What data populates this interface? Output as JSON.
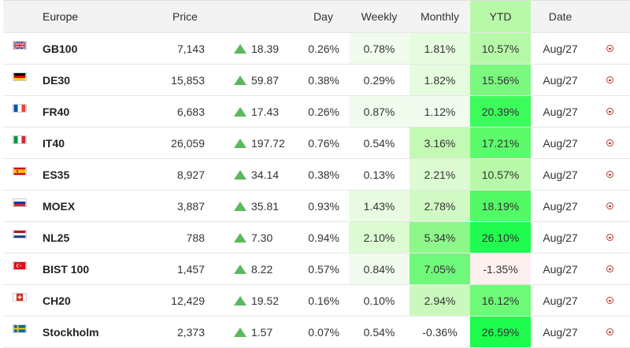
{
  "header": {
    "name": "Europe",
    "price": "Price",
    "day": "Day",
    "weekly": "Weekly",
    "monthly": "Monthly",
    "ytd": "YTD",
    "date": "Date"
  },
  "colors": {
    "up_arrow": "#5cb85c",
    "clock_icon": "#c0392b",
    "pale_green": "#eefbe9",
    "light_green": "#d6fbc9",
    "mid_green": "#a7f99a",
    "bright_green": "#3cfc5b",
    "pale_red": "#fdf0ee"
  },
  "rows": [
    {
      "flag": "uk-flag-icon",
      "name": "GB100",
      "price": "7,143",
      "change": "18.39",
      "day": "0.26%",
      "weekly": "0.78%",
      "monthly": "1.81%",
      "ytd": "10.57%",
      "date": "Aug/27",
      "bg": {
        "weekly": "#f2fcee",
        "monthly": "#e6fcde",
        "ytd": "#b7f9a8"
      }
    },
    {
      "flag": "germany-flag-icon",
      "name": "DE30",
      "price": "15,853",
      "change": "59.87",
      "day": "0.38%",
      "weekly": "0.29%",
      "monthly": "1.82%",
      "ytd": "15.56%",
      "date": "Aug/27",
      "bg": {
        "weekly": "#ffffff",
        "monthly": "#e6fcde",
        "ytd": "#7bf97f"
      }
    },
    {
      "flag": "france-flag-icon",
      "name": "FR40",
      "price": "6,683",
      "change": "17.43",
      "day": "0.26%",
      "weekly": "0.87%",
      "monthly": "1.12%",
      "ytd": "20.39%",
      "date": "Aug/27",
      "bg": {
        "weekly": "#f2fcee",
        "monthly": "#f2fcee",
        "ytd": "#3cfc5b"
      }
    },
    {
      "flag": "italy-flag-icon",
      "name": "IT40",
      "price": "26,059",
      "change": "197.72",
      "day": "0.76%",
      "weekly": "0.54%",
      "monthly": "3.16%",
      "ytd": "17.21%",
      "date": "Aug/27",
      "bg": {
        "weekly": "#ffffff",
        "monthly": "#c4f8b5",
        "ytd": "#5dfa6c"
      }
    },
    {
      "flag": "spain-flag-icon",
      "name": "ES35",
      "price": "8,927",
      "change": "34.14",
      "day": "0.38%",
      "weekly": "0.13%",
      "monthly": "2.21%",
      "ytd": "10.57%",
      "date": "Aug/27",
      "bg": {
        "weekly": "#ffffff",
        "monthly": "#dcfbd2",
        "ytd": "#b7f9a8"
      }
    },
    {
      "flag": "russia-flag-icon",
      "name": "MOEX",
      "price": "3,887",
      "change": "35.81",
      "day": "0.93%",
      "weekly": "1.43%",
      "monthly": "2.78%",
      "ytd": "18.19%",
      "date": "Aug/27",
      "bg": {
        "weekly": "#e9fce3",
        "monthly": "#d0f9c4",
        "ytd": "#52fa66"
      }
    },
    {
      "flag": "netherlands-flag-icon",
      "name": "NL25",
      "price": "788",
      "change": "7.30",
      "day": "0.94%",
      "weekly": "2.10%",
      "monthly": "5.34%",
      "ytd": "26.10%",
      "date": "Aug/27",
      "bg": {
        "weekly": "#dcfbd2",
        "monthly": "#8ef78a",
        "ytd": "#20fc4f"
      }
    },
    {
      "flag": "turkey-flag-icon",
      "name": "BIST 100",
      "price": "1,457",
      "change": "8.22",
      "day": "0.57%",
      "weekly": "0.84%",
      "monthly": "7.05%",
      "ytd": "-1.35%",
      "date": "Aug/27",
      "bg": {
        "weekly": "#f2fcee",
        "monthly": "#6ef97a",
        "ytd": "#fdf0ee"
      }
    },
    {
      "flag": "switzerland-flag-icon",
      "name": "CH20",
      "price": "12,429",
      "change": "19.52",
      "day": "0.16%",
      "weekly": "0.10%",
      "monthly": "2.94%",
      "ytd": "16.12%",
      "date": "Aug/27",
      "bg": {
        "weekly": "#ffffff",
        "monthly": "#cbf9bd",
        "ytd": "#6cfa77"
      }
    },
    {
      "flag": "sweden-flag-icon",
      "name": "Stockholm",
      "price": "2,373",
      "change": "1.57",
      "day": "0.07%",
      "weekly": "0.54%",
      "monthly": "-0.36%",
      "ytd": "26.59%",
      "date": "Aug/27",
      "bg": {
        "weekly": "#ffffff",
        "monthly": "#ffffff",
        "ytd": "#1dfc4d"
      }
    }
  ]
}
